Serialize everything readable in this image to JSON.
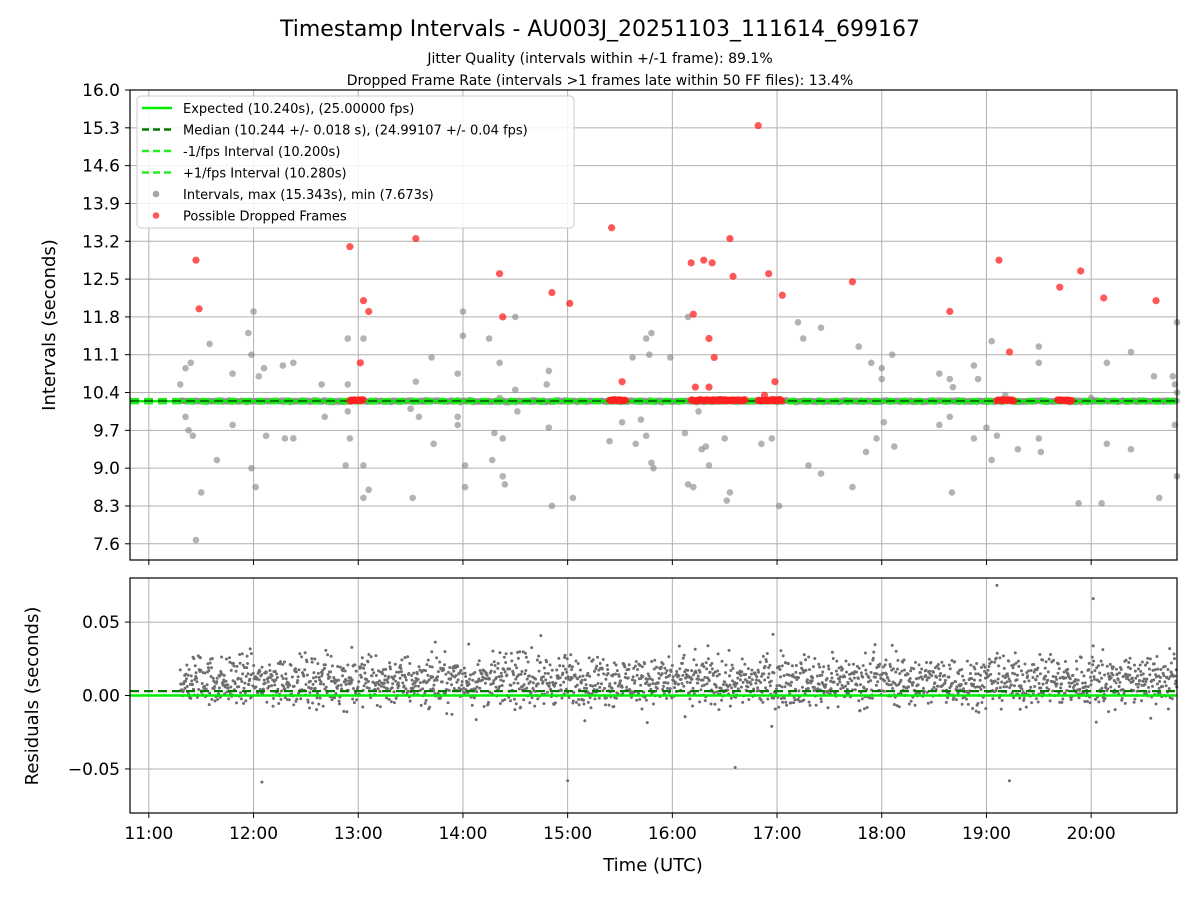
{
  "chart_data": {
    "type": "scatter",
    "title": "Timestamp Intervals - AU003J_20251103_111614_699167",
    "subtitle_lines": [
      "Jitter Quality (intervals within +/-1 frame): 89.1%",
      "Dropped Frame Rate (intervals >1 frames late within 50 FF files): 13.4%"
    ],
    "xlabel": "Time (UTC)",
    "x_tick_labels": [
      "11:00",
      "12:00",
      "13:00",
      "14:00",
      "15:00",
      "16:00",
      "17:00",
      "18:00",
      "19:00",
      "20:00"
    ],
    "x_tick_hours": [
      11,
      12,
      13,
      14,
      15,
      16,
      17,
      18,
      19,
      20
    ],
    "xlim_hours": [
      10.82,
      20.82
    ],
    "grid": true,
    "legend_position": "top-left",
    "colors": {
      "expected": "#00ee00",
      "median": "#007a00",
      "fps_bounds": "#22ee22",
      "intervals": "#8a8a8a",
      "dropped": "#ff2020",
      "residuals": "#6e6e6e"
    },
    "top_panel": {
      "ylabel": "Intervals (seconds)",
      "y_tick_labels": [
        "7.6",
        "8.3",
        "9.0",
        "9.7",
        "10.4",
        "11.1",
        "11.8",
        "12.5",
        "13.2",
        "13.9",
        "14.6",
        "15.3",
        "16.0"
      ],
      "y_tick_values": [
        7.6,
        8.3,
        9.0,
        9.7,
        10.4,
        11.1,
        11.8,
        12.5,
        13.2,
        13.9,
        14.6,
        15.3,
        16.0
      ],
      "ylim": [
        7.3,
        16.0
      ],
      "expected_interval": 10.24,
      "median_interval": 10.244,
      "lower_bound": 10.2,
      "upper_bound": 10.28,
      "legend": [
        {
          "key": "expected",
          "style": "solid",
          "label": "Expected (10.240s), (25.00000 fps)"
        },
        {
          "key": "median",
          "style": "dashed",
          "label": "Median (10.244 +/- 0.018 s), (24.99107 +/- 0.04 fps)"
        },
        {
          "key": "fps_bounds",
          "style": "dashed",
          "label": "-1/fps Interval (10.200s)"
        },
        {
          "key": "fps_bounds",
          "style": "dashed",
          "label": "+1/fps Interval (10.280s)"
        },
        {
          "key": "intervals",
          "style": "dot",
          "label": "Intervals, max (15.343s), min (7.673s)"
        },
        {
          "key": "dropped",
          "style": "dot",
          "label": "Possible Dropped Frames"
        }
      ],
      "intervals_outliers": [
        [
          11.3,
          10.55
        ],
        [
          11.35,
          10.85
        ],
        [
          11.4,
          10.95
        ],
        [
          11.35,
          9.95
        ],
        [
          11.38,
          9.7
        ],
        [
          11.42,
          9.6
        ],
        [
          11.45,
          7.67
        ],
        [
          11.5,
          8.55
        ],
        [
          11.58,
          11.3
        ],
        [
          11.65,
          9.15
        ],
        [
          11.8,
          10.75
        ],
        [
          11.8,
          9.8
        ],
        [
          11.95,
          11.5
        ],
        [
          11.98,
          11.1
        ],
        [
          11.98,
          9.0
        ],
        [
          12.0,
          11.9
        ],
        [
          12.02,
          8.65
        ],
        [
          12.05,
          10.7
        ],
        [
          12.1,
          10.85
        ],
        [
          12.12,
          9.6
        ],
        [
          12.28,
          10.9
        ],
        [
          12.3,
          9.55
        ],
        [
          12.38,
          10.95
        ],
        [
          12.38,
          9.55
        ],
        [
          12.65,
          10.55
        ],
        [
          12.68,
          9.95
        ],
        [
          12.9,
          11.4
        ],
        [
          12.9,
          10.55
        ],
        [
          12.9,
          10.05
        ],
        [
          12.92,
          9.55
        ],
        [
          12.88,
          9.05
        ],
        [
          13.05,
          11.4
        ],
        [
          13.05,
          9.05
        ],
        [
          13.05,
          8.45
        ],
        [
          13.1,
          8.6
        ],
        [
          13.5,
          10.1
        ],
        [
          13.52,
          8.45
        ],
        [
          13.55,
          10.6
        ],
        [
          13.58,
          9.95
        ],
        [
          13.7,
          11.05
        ],
        [
          13.72,
          9.45
        ],
        [
          13.95,
          10.75
        ],
        [
          13.95,
          9.95
        ],
        [
          13.95,
          9.8
        ],
        [
          14.0,
          11.9
        ],
        [
          14.0,
          11.45
        ],
        [
          14.02,
          9.05
        ],
        [
          14.02,
          8.65
        ],
        [
          14.25,
          11.4
        ],
        [
          14.28,
          9.15
        ],
        [
          14.3,
          9.65
        ],
        [
          14.35,
          10.95
        ],
        [
          14.35,
          10.3
        ],
        [
          14.38,
          8.85
        ],
        [
          14.4,
          8.7
        ],
        [
          14.38,
          9.55
        ],
        [
          14.5,
          11.8
        ],
        [
          14.5,
          10.45
        ],
        [
          14.52,
          10.05
        ],
        [
          14.8,
          10.55
        ],
        [
          14.82,
          9.75
        ],
        [
          14.82,
          10.8
        ],
        [
          14.85,
          8.3
        ],
        [
          15.05,
          8.45
        ],
        [
          15.4,
          9.5
        ],
        [
          15.52,
          9.85
        ],
        [
          15.62,
          11.05
        ],
        [
          15.65,
          9.45
        ],
        [
          15.7,
          9.9
        ],
        [
          15.75,
          11.4
        ],
        [
          15.75,
          9.6
        ],
        [
          15.78,
          11.1
        ],
        [
          15.8,
          11.5
        ],
        [
          15.8,
          9.1
        ],
        [
          15.82,
          9.0
        ],
        [
          15.98,
          11.05
        ],
        [
          16.12,
          9.65
        ],
        [
          16.15,
          11.8
        ],
        [
          16.15,
          8.7
        ],
        [
          16.2,
          8.65
        ],
        [
          16.25,
          10.05
        ],
        [
          16.28,
          9.35
        ],
        [
          16.32,
          9.4
        ],
        [
          16.35,
          9.05
        ],
        [
          16.5,
          9.55
        ],
        [
          16.52,
          8.4
        ],
        [
          16.55,
          8.55
        ],
        [
          16.85,
          9.45
        ],
        [
          16.95,
          9.55
        ],
        [
          17.02,
          8.3
        ],
        [
          17.2,
          11.7
        ],
        [
          17.25,
          11.4
        ],
        [
          17.3,
          9.05
        ],
        [
          17.42,
          11.6
        ],
        [
          17.42,
          8.9
        ],
        [
          17.72,
          8.65
        ],
        [
          17.78,
          11.25
        ],
        [
          17.85,
          9.3
        ],
        [
          17.9,
          10.95
        ],
        [
          17.95,
          9.55
        ],
        [
          18.0,
          10.85
        ],
        [
          18.0,
          10.65
        ],
        [
          18.02,
          9.85
        ],
        [
          18.1,
          11.1
        ],
        [
          18.12,
          9.4
        ],
        [
          18.55,
          10.75
        ],
        [
          18.55,
          9.8
        ],
        [
          18.65,
          10.65
        ],
        [
          18.65,
          9.95
        ],
        [
          18.67,
          8.55
        ],
        [
          18.68,
          10.5
        ],
        [
          18.88,
          10.9
        ],
        [
          18.88,
          9.55
        ],
        [
          18.92,
          10.65
        ],
        [
          19.0,
          9.75
        ],
        [
          19.05,
          11.35
        ],
        [
          19.05,
          9.15
        ],
        [
          19.1,
          9.6
        ],
        [
          19.18,
          10.35
        ],
        [
          19.3,
          9.35
        ],
        [
          19.5,
          11.25
        ],
        [
          19.5,
          10.95
        ],
        [
          19.5,
          9.55
        ],
        [
          19.52,
          9.3
        ],
        [
          19.88,
          8.35
        ],
        [
          20.0,
          10.3
        ],
        [
          20.1,
          8.35
        ],
        [
          20.15,
          10.95
        ],
        [
          20.15,
          9.45
        ],
        [
          20.38,
          11.15
        ],
        [
          20.38,
          9.35
        ],
        [
          20.6,
          10.7
        ],
        [
          20.65,
          8.45
        ],
        [
          20.78,
          10.7
        ],
        [
          20.8,
          10.55
        ],
        [
          20.8,
          9.8
        ],
        [
          20.82,
          11.7
        ],
        [
          20.82,
          8.85
        ],
        [
          20.82,
          10.4
        ]
      ],
      "dropped_frames": [
        [
          11.45,
          12.85
        ],
        [
          11.48,
          11.95
        ],
        [
          12.92,
          13.1
        ],
        [
          13.02,
          10.95
        ],
        [
          13.05,
          12.1
        ],
        [
          13.1,
          11.9
        ],
        [
          13.55,
          13.25
        ],
        [
          14.35,
          12.6
        ],
        [
          14.38,
          11.8
        ],
        [
          14.85,
          12.25
        ],
        [
          15.02,
          12.05
        ],
        [
          15.42,
          13.45
        ],
        [
          15.52,
          10.6
        ],
        [
          16.18,
          12.8
        ],
        [
          16.2,
          11.85
        ],
        [
          16.22,
          10.5
        ],
        [
          16.3,
          12.85
        ],
        [
          16.35,
          10.5
        ],
        [
          16.35,
          11.4
        ],
        [
          16.38,
          12.8
        ],
        [
          16.4,
          11.05
        ],
        [
          16.55,
          13.25
        ],
        [
          16.58,
          12.55
        ],
        [
          16.82,
          15.34
        ],
        [
          16.88,
          10.35
        ],
        [
          16.92,
          12.6
        ],
        [
          16.98,
          10.6
        ],
        [
          17.05,
          12.2
        ],
        [
          17.72,
          12.45
        ],
        [
          18.65,
          11.9
        ],
        [
          19.12,
          12.85
        ],
        [
          19.22,
          11.15
        ],
        [
          19.7,
          12.35
        ],
        [
          19.9,
          12.65
        ],
        [
          20.12,
          12.15
        ],
        [
          20.62,
          12.1
        ]
      ],
      "dropped_clusters": [
        [
          12.92,
          13.05,
          10.255
        ],
        [
          15.4,
          15.56,
          10.255
        ],
        [
          16.18,
          16.7,
          10.255
        ],
        [
          16.82,
          17.05,
          10.255
        ],
        [
          19.1,
          19.27,
          10.255
        ],
        [
          19.68,
          19.82,
          10.255
        ]
      ],
      "interval_band": {
        "start_hour": 11.3,
        "center": 10.24,
        "spread": 0.025
      }
    },
    "bottom_panel": {
      "ylabel": "Residuals (seconds)",
      "y_tick_labels": [
        "−0.05",
        "0.00",
        "0.05"
      ],
      "y_tick_values": [
        -0.05,
        0.0,
        0.05
      ],
      "ylim": [
        -0.08,
        0.08
      ],
      "expected_residual": 0.0,
      "median_residual": 0.003,
      "residual_band": {
        "start_hour": 11.3,
        "end_hour": 20.82,
        "center": 0.01,
        "spread": 0.025
      },
      "residual_outliers": [
        [
          19.1,
          0.075
        ],
        [
          19.22,
          -0.058
        ],
        [
          20.02,
          0.066
        ],
        [
          15.0,
          -0.058
        ],
        [
          12.08,
          -0.059
        ],
        [
          16.6,
          -0.049
        ]
      ]
    }
  }
}
